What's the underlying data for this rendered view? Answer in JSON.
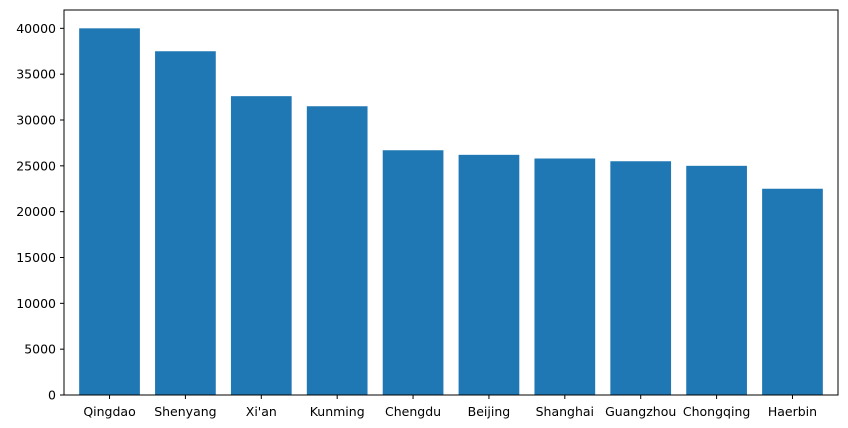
{
  "chart_data": {
    "type": "bar",
    "title": "",
    "xlabel": "",
    "ylabel": "",
    "categories": [
      "Qingdao",
      "Shenyang",
      "Xi'an",
      "Kunming",
      "Chengdu",
      "Beijing",
      "Shanghai",
      "Guangzhou",
      "Chongqing",
      "Haerbin"
    ],
    "values": [
      40000,
      37500,
      32600,
      31500,
      26700,
      26200,
      25800,
      25500,
      25000,
      22500
    ],
    "ylim": [
      0,
      42000
    ],
    "yticks": [
      0,
      5000,
      10000,
      15000,
      20000,
      25000,
      30000,
      35000,
      40000
    ],
    "grid": false,
    "bar_color": "#1f77b4"
  }
}
